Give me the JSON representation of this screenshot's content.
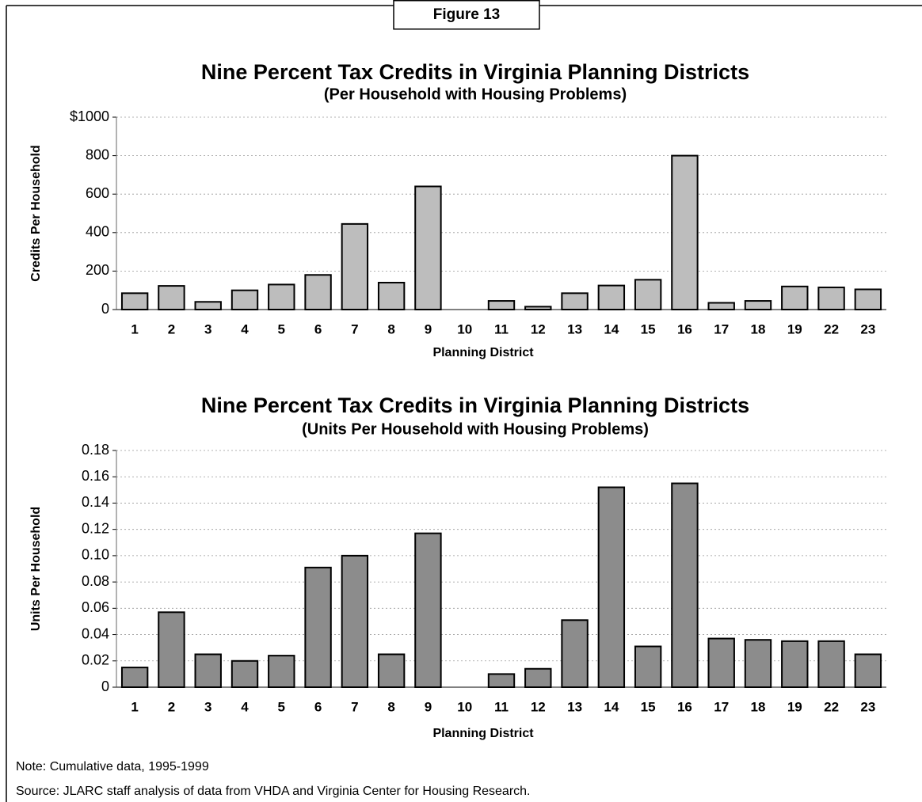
{
  "figure_label": "Figure 13",
  "chart_data": [
    {
      "type": "bar",
      "title": "Nine Percent Tax Credits in Virginia Planning Districts",
      "subtitle": "(Per Household with Housing Problems)",
      "x_label": "Planning District",
      "y_label": "Credits Per Household",
      "categories": [
        "1",
        "2",
        "3",
        "4",
        "5",
        "6",
        "7",
        "8",
        "9",
        "10",
        "11",
        "12",
        "13",
        "14",
        "15",
        "16",
        "17",
        "18",
        "19",
        "22",
        "23"
      ],
      "values": [
        85,
        123,
        40,
        100,
        130,
        180,
        445,
        140,
        640,
        0,
        45,
        15,
        85,
        125,
        155,
        800,
        35,
        45,
        120,
        115,
        105
      ],
      "color": "#bdbdbd",
      "ylim": [
        0,
        1000
      ],
      "yticks": [
        0,
        200,
        400,
        600,
        800,
        {
          "value": 1000,
          "label": "$1000"
        }
      ],
      "grid": true
    },
    {
      "type": "bar",
      "title": "Nine Percent Tax Credits in Virginia Planning Districts",
      "subtitle": "(Units Per Household with Housing Problems)",
      "x_label": "Planning District",
      "y_label": "Units Per Household",
      "categories": [
        "1",
        "2",
        "3",
        "4",
        "5",
        "6",
        "7",
        "8",
        "9",
        "10",
        "11",
        "12",
        "13",
        "14",
        "15",
        "16",
        "17",
        "18",
        "19",
        "22",
        "23"
      ],
      "values": [
        0.015,
        0.057,
        0.025,
        0.02,
        0.024,
        0.091,
        0.1,
        0.025,
        0.117,
        0,
        0.01,
        0.014,
        0.051,
        0.152,
        0.031,
        0.155,
        0.037,
        0.036,
        0.035,
        0.035,
        0.025
      ],
      "color": "#8c8c8c",
      "ylim": [
        0,
        0.18
      ],
      "yticks": [
        0,
        0.02,
        0.04,
        0.06,
        0.08,
        {
          "value": 0.1,
          "label": "0.10"
        },
        0.12,
        0.14,
        0.16,
        0.18
      ],
      "grid": true
    }
  ],
  "note": "Note:  Cumulative data, 1995-1999",
  "source": "Source:  JLARC staff analysis of data from VHDA and Virginia Center for Housing Research."
}
